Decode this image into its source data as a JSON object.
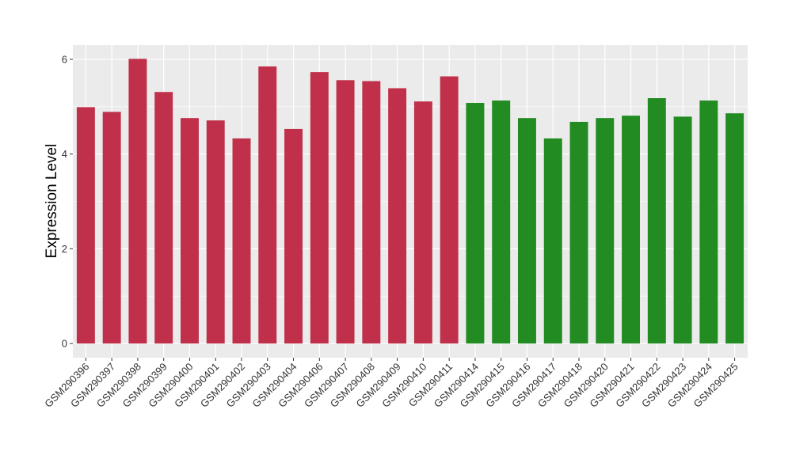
{
  "chart_data": {
    "type": "bar",
    "ylabel": "Expression Level",
    "xlabel": "",
    "title": "",
    "ylim": [
      -0.3,
      6.3
    ],
    "yticks": [
      0,
      2,
      4,
      6
    ],
    "grid": true,
    "categories": [
      "GSM290396",
      "GSM290397",
      "GSM290398",
      "GSM290399",
      "GSM290400",
      "GSM290401",
      "GSM290402",
      "GSM290403",
      "GSM290404",
      "GSM290406",
      "GSM290407",
      "GSM290408",
      "GSM290409",
      "GSM290410",
      "GSM290411",
      "GSM290414",
      "GSM290415",
      "GSM290416",
      "GSM290417",
      "GSM290418",
      "GSM290420",
      "GSM290421",
      "GSM290422",
      "GSM290423",
      "GSM290424",
      "GSM290425"
    ],
    "values": [
      4.99,
      4.89,
      6.01,
      5.31,
      4.76,
      4.71,
      4.33,
      5.85,
      4.53,
      5.73,
      5.56,
      5.54,
      5.39,
      5.11,
      5.64,
      5.08,
      5.13,
      4.76,
      4.33,
      4.68,
      4.76,
      4.81,
      5.18,
      4.79,
      5.13,
      4.86
    ],
    "groups": [
      "a",
      "a",
      "a",
      "a",
      "a",
      "a",
      "a",
      "a",
      "a",
      "a",
      "a",
      "a",
      "a",
      "a",
      "a",
      "b",
      "b",
      "b",
      "b",
      "b",
      "b",
      "b",
      "b",
      "b",
      "b",
      "b"
    ],
    "colors": {
      "a": "#c0304a",
      "b": "#228b22",
      "panel": "#ebebeb",
      "grid": "#ffffff"
    }
  }
}
